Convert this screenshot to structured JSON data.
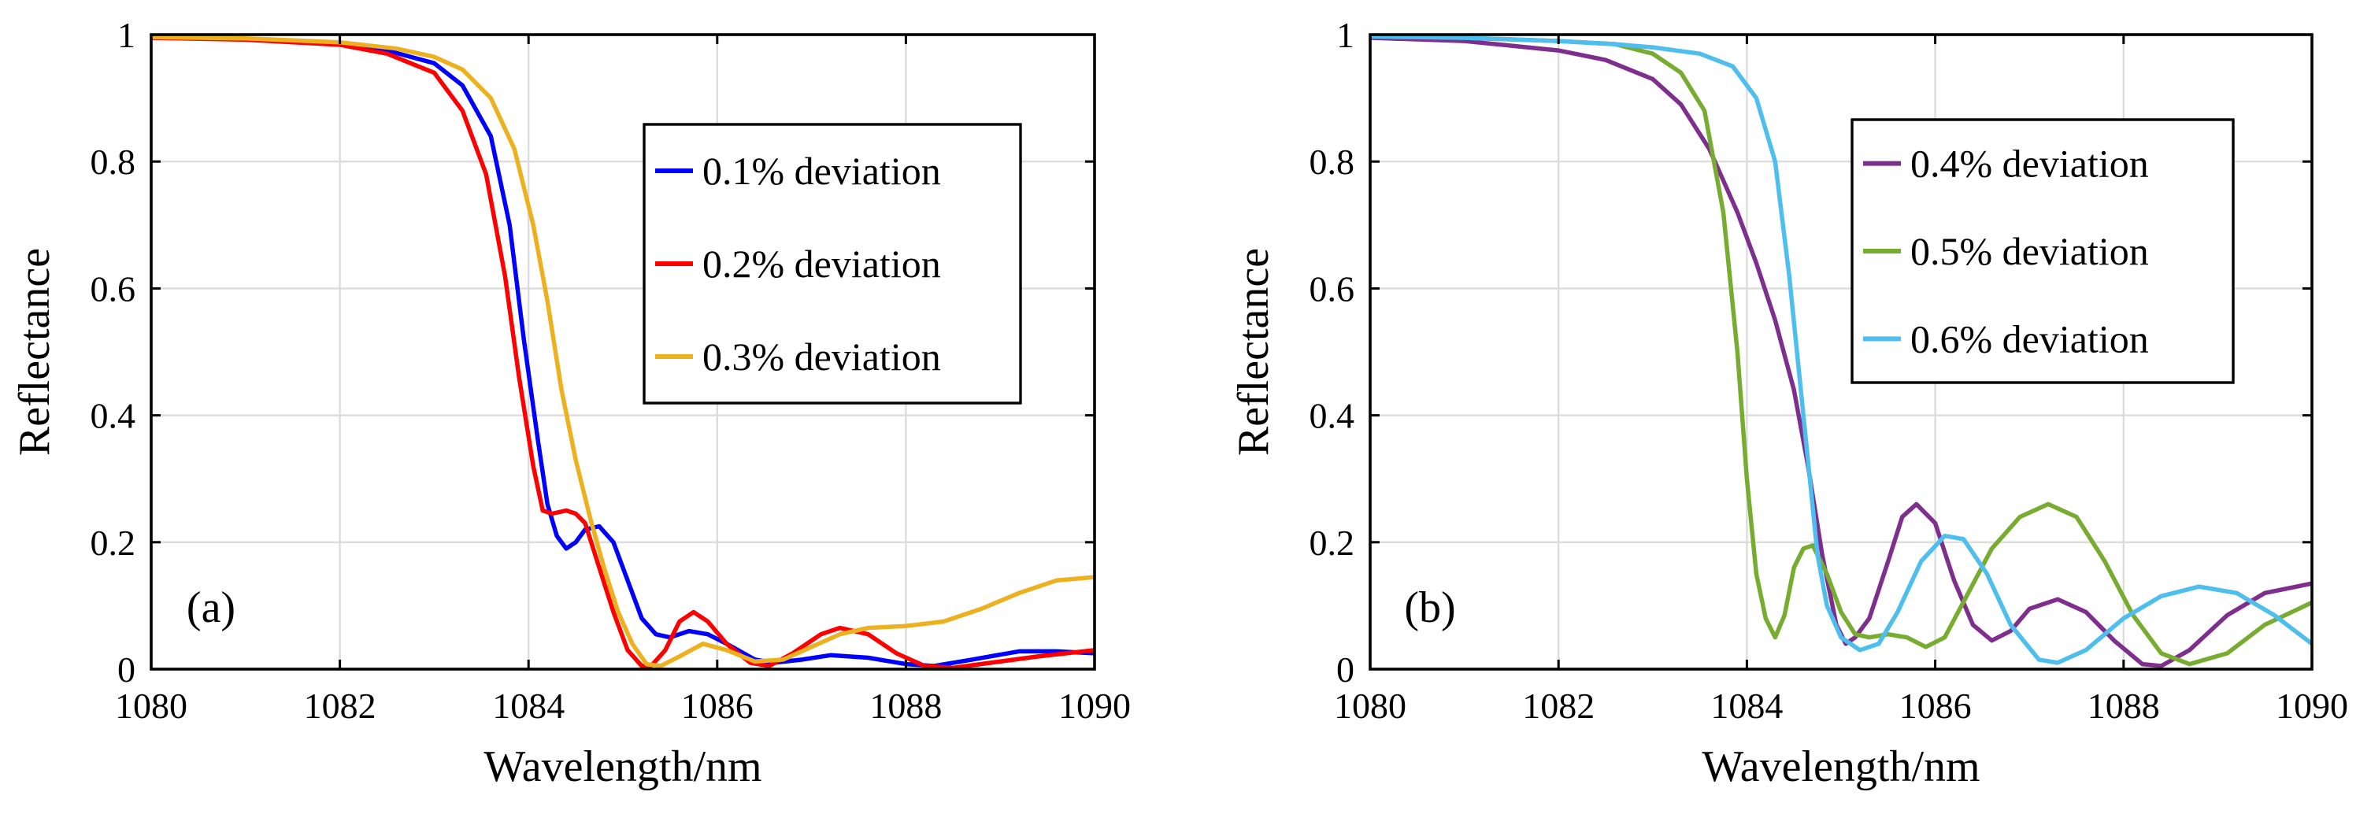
{
  "chart_data": [
    {
      "type": "line",
      "panel_label": "(a)",
      "xlabel": "Wavelength/nm",
      "ylabel": "Reflectance",
      "xlim": [
        1080,
        1090
      ],
      "ylim": [
        0,
        1
      ],
      "xticks": [
        1080,
        1082,
        1084,
        1086,
        1088,
        1090
      ],
      "xtick_labels": [
        "1080",
        "1082",
        "1084",
        "1086",
        "1088",
        "1090"
      ],
      "yticks": [
        0,
        0.2,
        0.4,
        0.6,
        0.8,
        1
      ],
      "ytick_labels": [
        "0",
        "0.2",
        "0.4",
        "0.6",
        "0.8",
        "1"
      ],
      "grid": true,
      "legend_position": "top-right",
      "series": [
        {
          "name": "0.1% deviation",
          "color": "#0000ff",
          "points": [
            [
              1080,
              0.995
            ],
            [
              1081,
              0.993
            ],
            [
              1082,
              0.985
            ],
            [
              1082.5,
              0.975
            ],
            [
              1083,
              0.955
            ],
            [
              1083.3,
              0.92
            ],
            [
              1083.6,
              0.84
            ],
            [
              1083.8,
              0.7
            ],
            [
              1083.95,
              0.52
            ],
            [
              1084.1,
              0.36
            ],
            [
              1084.2,
              0.26
            ],
            [
              1084.3,
              0.21
            ],
            [
              1084.4,
              0.19
            ],
            [
              1084.5,
              0.2
            ],
            [
              1084.6,
              0.22
            ],
            [
              1084.75,
              0.225
            ],
            [
              1084.9,
              0.2
            ],
            [
              1085.05,
              0.14
            ],
            [
              1085.2,
              0.08
            ],
            [
              1085.35,
              0.055
            ],
            [
              1085.5,
              0.05
            ],
            [
              1085.7,
              0.06
            ],
            [
              1085.9,
              0.055
            ],
            [
              1086.1,
              0.04
            ],
            [
              1086.4,
              0.015
            ],
            [
              1086.6,
              0.01
            ],
            [
              1086.9,
              0.015
            ],
            [
              1087.2,
              0.022
            ],
            [
              1087.6,
              0.018
            ],
            [
              1088,
              0.008
            ],
            [
              1088.3,
              0.005
            ],
            [
              1088.7,
              0.015
            ],
            [
              1089.2,
              0.028
            ],
            [
              1089.6,
              0.028
            ],
            [
              1090,
              0.025
            ]
          ]
        },
        {
          "name": "0.2% deviation",
          "color": "#ff0000",
          "points": [
            [
              1080,
              0.995
            ],
            [
              1081,
              0.992
            ],
            [
              1082,
              0.984
            ],
            [
              1082.5,
              0.97
            ],
            [
              1083,
              0.94
            ],
            [
              1083.3,
              0.88
            ],
            [
              1083.55,
              0.78
            ],
            [
              1083.75,
              0.62
            ],
            [
              1083.9,
              0.46
            ],
            [
              1084.05,
              0.32
            ],
            [
              1084.15,
              0.25
            ],
            [
              1084.25,
              0.245
            ],
            [
              1084.4,
              0.25
            ],
            [
              1084.5,
              0.245
            ],
            [
              1084.6,
              0.23
            ],
            [
              1084.75,
              0.16
            ],
            [
              1084.9,
              0.09
            ],
            [
              1085.05,
              0.03
            ],
            [
              1085.2,
              0.005
            ],
            [
              1085.3,
              0.005
            ],
            [
              1085.45,
              0.03
            ],
            [
              1085.6,
              0.075
            ],
            [
              1085.75,
              0.09
            ],
            [
              1085.9,
              0.075
            ],
            [
              1086.1,
              0.04
            ],
            [
              1086.35,
              0.01
            ],
            [
              1086.55,
              0.005
            ],
            [
              1086.8,
              0.025
            ],
            [
              1087.1,
              0.055
            ],
            [
              1087.3,
              0.065
            ],
            [
              1087.6,
              0.055
            ],
            [
              1087.9,
              0.025
            ],
            [
              1088.2,
              0.005
            ],
            [
              1088.5,
              0.002
            ],
            [
              1088.9,
              0.01
            ],
            [
              1089.4,
              0.02
            ],
            [
              1090,
              0.03
            ]
          ]
        },
        {
          "name": "0.3% deviation",
          "color": "#edb120",
          "points": [
            [
              1080,
              0.996
            ],
            [
              1081,
              0.994
            ],
            [
              1082,
              0.988
            ],
            [
              1082.6,
              0.978
            ],
            [
              1083,
              0.965
            ],
            [
              1083.3,
              0.945
            ],
            [
              1083.6,
              0.9
            ],
            [
              1083.85,
              0.82
            ],
            [
              1084.05,
              0.7
            ],
            [
              1084.2,
              0.58
            ],
            [
              1084.35,
              0.44
            ],
            [
              1084.5,
              0.33
            ],
            [
              1084.65,
              0.24
            ],
            [
              1084.8,
              0.16
            ],
            [
              1084.95,
              0.09
            ],
            [
              1085.1,
              0.04
            ],
            [
              1085.25,
              0.008
            ],
            [
              1085.4,
              0.005
            ],
            [
              1085.6,
              0.02
            ],
            [
              1085.85,
              0.04
            ],
            [
              1086.1,
              0.03
            ],
            [
              1086.4,
              0.012
            ],
            [
              1086.7,
              0.015
            ],
            [
              1087,
              0.035
            ],
            [
              1087.3,
              0.055
            ],
            [
              1087.6,
              0.065
            ],
            [
              1088,
              0.068
            ],
            [
              1088.4,
              0.075
            ],
            [
              1088.8,
              0.095
            ],
            [
              1089.2,
              0.12
            ],
            [
              1089.6,
              0.14
            ],
            [
              1090,
              0.145
            ]
          ]
        }
      ]
    },
    {
      "type": "line",
      "panel_label": "(b)",
      "xlabel": "Wavelength/nm",
      "ylabel": "Reflectance",
      "xlim": [
        1080,
        1090
      ],
      "ylim": [
        0,
        1
      ],
      "xticks": [
        1080,
        1082,
        1084,
        1086,
        1088,
        1090
      ],
      "xtick_labels": [
        "1080",
        "1082",
        "1084",
        "1086",
        "1088",
        "1090"
      ],
      "yticks": [
        0,
        0.2,
        0.4,
        0.6,
        0.8,
        1
      ],
      "ytick_labels": [
        "0",
        "0.2",
        "0.4",
        "0.6",
        "0.8",
        "1"
      ],
      "grid": true,
      "legend_position": "top-right",
      "series": [
        {
          "name": "0.4% deviation",
          "color": "#7e2f8e",
          "points": [
            [
              1080,
              0.995
            ],
            [
              1081,
              0.99
            ],
            [
              1082,
              0.975
            ],
            [
              1082.5,
              0.96
            ],
            [
              1083,
              0.93
            ],
            [
              1083.3,
              0.89
            ],
            [
              1083.6,
              0.82
            ],
            [
              1083.9,
              0.72
            ],
            [
              1084.1,
              0.64
            ],
            [
              1084.3,
              0.55
            ],
            [
              1084.5,
              0.44
            ],
            [
              1084.65,
              0.32
            ],
            [
              1084.8,
              0.18
            ],
            [
              1084.95,
              0.07
            ],
            [
              1085.05,
              0.04
            ],
            [
              1085.15,
              0.05
            ],
            [
              1085.3,
              0.08
            ],
            [
              1085.5,
              0.17
            ],
            [
              1085.65,
              0.24
            ],
            [
              1085.8,
              0.26
            ],
            [
              1086,
              0.23
            ],
            [
              1086.2,
              0.14
            ],
            [
              1086.4,
              0.07
            ],
            [
              1086.6,
              0.045
            ],
            [
              1086.8,
              0.06
            ],
            [
              1087,
              0.095
            ],
            [
              1087.3,
              0.11
            ],
            [
              1087.6,
              0.09
            ],
            [
              1087.9,
              0.045
            ],
            [
              1088.2,
              0.008
            ],
            [
              1088.4,
              0.005
            ],
            [
              1088.7,
              0.03
            ],
            [
              1089.1,
              0.085
            ],
            [
              1089.5,
              0.12
            ],
            [
              1090,
              0.135
            ]
          ]
        },
        {
          "name": "0.5% deviation",
          "color": "#77ac30",
          "points": [
            [
              1080,
              0.998
            ],
            [
              1081,
              0.995
            ],
            [
              1082,
              0.99
            ],
            [
              1082.6,
              0.985
            ],
            [
              1083,
              0.97
            ],
            [
              1083.3,
              0.94
            ],
            [
              1083.55,
              0.88
            ],
            [
              1083.75,
              0.72
            ],
            [
              1083.9,
              0.5
            ],
            [
              1084,
              0.3
            ],
            [
              1084.1,
              0.15
            ],
            [
              1084.2,
              0.08
            ],
            [
              1084.3,
              0.05
            ],
            [
              1084.4,
              0.085
            ],
            [
              1084.5,
              0.16
            ],
            [
              1084.6,
              0.19
            ],
            [
              1084.7,
              0.195
            ],
            [
              1084.85,
              0.15
            ],
            [
              1085,
              0.09
            ],
            [
              1085.15,
              0.055
            ],
            [
              1085.3,
              0.05
            ],
            [
              1085.5,
              0.055
            ],
            [
              1085.7,
              0.05
            ],
            [
              1085.9,
              0.035
            ],
            [
              1086.1,
              0.05
            ],
            [
              1086.35,
              0.12
            ],
            [
              1086.6,
              0.19
            ],
            [
              1086.9,
              0.24
            ],
            [
              1087.2,
              0.26
            ],
            [
              1087.5,
              0.24
            ],
            [
              1087.8,
              0.17
            ],
            [
              1088.1,
              0.085
            ],
            [
              1088.4,
              0.025
            ],
            [
              1088.7,
              0.008
            ],
            [
              1089.1,
              0.025
            ],
            [
              1089.5,
              0.07
            ],
            [
              1090,
              0.105
            ]
          ]
        },
        {
          "name": "0.6% deviation",
          "color": "#4dbeee",
          "points": [
            [
              1080,
              0.997
            ],
            [
              1081,
              0.995
            ],
            [
              1082,
              0.99
            ],
            [
              1082.6,
              0.985
            ],
            [
              1083,
              0.98
            ],
            [
              1083.5,
              0.97
            ],
            [
              1083.85,
              0.95
            ],
            [
              1084.1,
              0.9
            ],
            [
              1084.3,
              0.8
            ],
            [
              1084.45,
              0.62
            ],
            [
              1084.6,
              0.4
            ],
            [
              1084.75,
              0.18
            ],
            [
              1084.85,
              0.1
            ],
            [
              1085,
              0.05
            ],
            [
              1085.2,
              0.03
            ],
            [
              1085.4,
              0.04
            ],
            [
              1085.6,
              0.09
            ],
            [
              1085.85,
              0.17
            ],
            [
              1086.1,
              0.21
            ],
            [
              1086.3,
              0.205
            ],
            [
              1086.55,
              0.15
            ],
            [
              1086.8,
              0.07
            ],
            [
              1087.1,
              0.015
            ],
            [
              1087.3,
              0.01
            ],
            [
              1087.6,
              0.03
            ],
            [
              1088,
              0.08
            ],
            [
              1088.4,
              0.115
            ],
            [
              1088.8,
              0.13
            ],
            [
              1089.2,
              0.12
            ],
            [
              1089.6,
              0.085
            ],
            [
              1090,
              0.04
            ]
          ]
        }
      ]
    }
  ]
}
